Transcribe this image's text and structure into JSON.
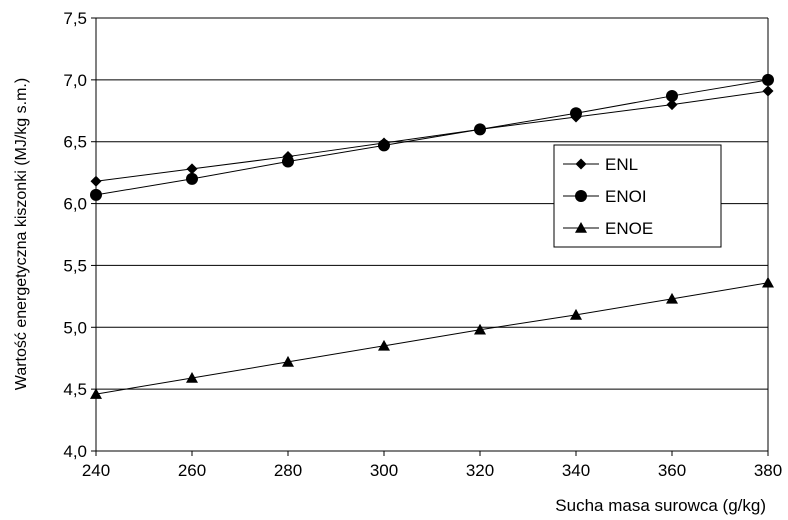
{
  "chart_data": {
    "type": "line",
    "xlabel": "Sucha masa surowca (g/kg)",
    "ylabel": "Wartość energetyczna kiszonki (MJ/kg s.m.)",
    "x": [
      240,
      260,
      280,
      300,
      320,
      340,
      360,
      380
    ],
    "xlim": [
      240,
      380
    ],
    "ylim": [
      4.0,
      7.5
    ],
    "x_ticks": [
      240,
      260,
      280,
      300,
      320,
      340,
      360,
      380
    ],
    "y_ticks": [
      4.0,
      4.5,
      5.0,
      5.5,
      6.0,
      6.5,
      7.0,
      7.5
    ],
    "x_tick_labels": [
      "240",
      "260",
      "280",
      "300",
      "320",
      "340",
      "360",
      "380"
    ],
    "y_tick_labels": [
      "4,0",
      "4,5",
      "5,0",
      "5,5",
      "6,0",
      "6,5",
      "7,0",
      "7,5"
    ],
    "grid": "horizontal",
    "legend_position": "right",
    "series": [
      {
        "name": "ENL",
        "marker": "diamond",
        "color": "#000000",
        "values": [
          6.18,
          6.28,
          6.38,
          6.49,
          6.6,
          6.7,
          6.8,
          6.91
        ]
      },
      {
        "name": "ENOI",
        "marker": "circle",
        "color": "#000000",
        "values": [
          6.07,
          6.2,
          6.34,
          6.47,
          6.6,
          6.73,
          6.87,
          7.0
        ]
      },
      {
        "name": "ENOE",
        "marker": "triangle",
        "color": "#000000",
        "values": [
          4.46,
          4.59,
          4.72,
          4.85,
          4.98,
          5.1,
          5.23,
          5.36
        ]
      }
    ]
  }
}
